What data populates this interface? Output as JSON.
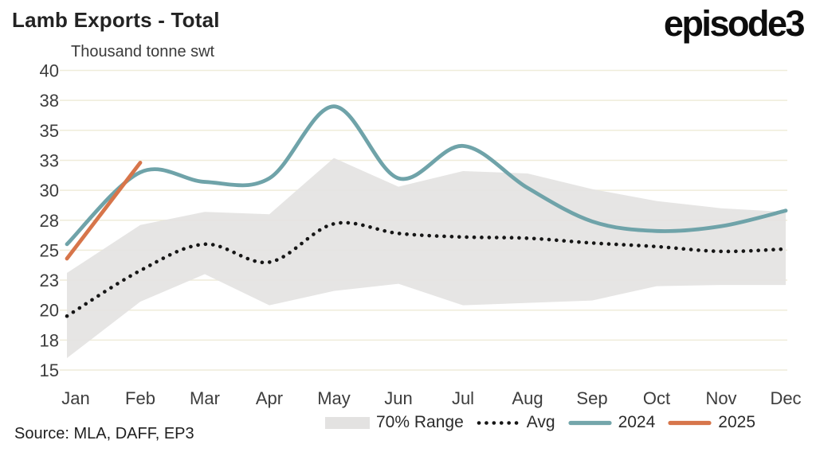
{
  "header": {
    "title": "Lamb Exports - Total",
    "subtitle": "Thousand tonne swt",
    "brand_logo": "episode3"
  },
  "footer": {
    "source": "Source: MLA, DAFF, EP3"
  },
  "legend": {
    "position": "bottom",
    "items": [
      {
        "label": "70% Range",
        "swatch": "band",
        "color": "#E3E2E1"
      },
      {
        "label": "Avg",
        "swatch": "dotted",
        "color": "#161616"
      },
      {
        "label": "2024",
        "swatch": "line",
        "color": "#74A6AB"
      },
      {
        "label": "2025",
        "swatch": "line",
        "color": "#D7764B"
      }
    ]
  },
  "chart_data": {
    "type": "line",
    "title": "Lamb Exports - Total",
    "ylabel": "Thousand tonne swt",
    "xlabel": "",
    "grid": true,
    "legend_position": "bottom",
    "categories": [
      "Jan",
      "Feb",
      "Mar",
      "Apr",
      "May",
      "Jun",
      "Jul",
      "Aug",
      "Sep",
      "Oct",
      "Nov",
      "Dec"
    ],
    "y_axis": {
      "min": 15,
      "max": 40,
      "ticks": [
        {
          "label": "40",
          "value": 40
        },
        {
          "label": "38",
          "value": 37.5
        },
        {
          "label": "35",
          "value": 35
        },
        {
          "label": "33",
          "value": 32.5
        },
        {
          "label": "30",
          "value": 30
        },
        {
          "label": "28",
          "value": 27.5
        },
        {
          "label": "25",
          "value": 25
        },
        {
          "label": "23",
          "value": 22.5
        },
        {
          "label": "20",
          "value": 20
        },
        {
          "label": "18",
          "value": 17.5
        },
        {
          "label": "15",
          "value": 15
        }
      ]
    },
    "series": [
      {
        "name": "70% Range",
        "type": "band",
        "color": "#E3E2E1",
        "upper": [
          23.1,
          27.1,
          28.2,
          28.0,
          32.7,
          30.3,
          31.6,
          31.4,
          30.1,
          29.1,
          28.5,
          28.2
        ],
        "lower": [
          16.0,
          20.7,
          23.0,
          20.4,
          21.6,
          22.2,
          20.4,
          20.6,
          20.8,
          22.0,
          22.1,
          22.1
        ]
      },
      {
        "name": "Avg",
        "type": "dotted",
        "color": "#161616",
        "values": [
          19.5,
          23.3,
          25.5,
          24.0,
          27.2,
          26.4,
          26.1,
          26.0,
          25.6,
          25.3,
          24.9,
          25.1
        ]
      },
      {
        "name": "2024",
        "type": "smooth",
        "color": "#6FA3A9",
        "values": [
          25.5,
          31.5,
          30.7,
          31.0,
          37.0,
          31.0,
          33.7,
          30.2,
          27.4,
          26.6,
          27.0,
          28.3
        ]
      },
      {
        "name": "2025",
        "type": "smooth",
        "color": "#D7754A",
        "values": [
          24.3,
          32.3,
          null,
          null,
          null,
          null,
          null,
          null,
          null,
          null,
          null,
          null
        ]
      }
    ]
  },
  "colors": {
    "gridline": "#EFECDA",
    "axis_text": "#3d3d3d",
    "background": "#FFFFFF"
  }
}
